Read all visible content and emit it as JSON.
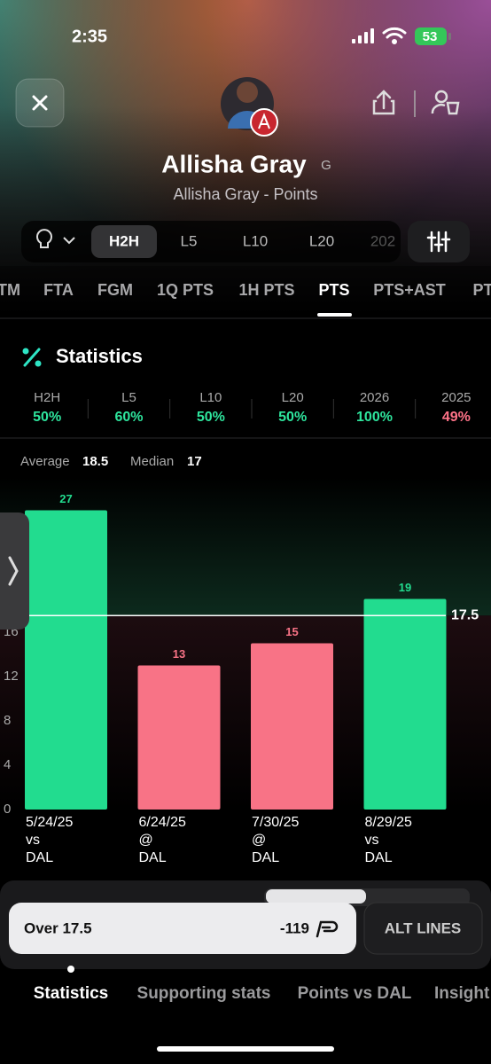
{
  "status_bar": {
    "time": "2:35",
    "battery": "53"
  },
  "header": {
    "player": "Allisha Gray",
    "position": "G",
    "subtitle": "Allisha Gray - Points"
  },
  "range_tabs": [
    "H2H",
    "L5",
    "L10",
    "L20",
    "202"
  ],
  "stat_tabs": [
    "TM",
    "FTA",
    "FGM",
    "1Q PTS",
    "1H PTS",
    "PTS",
    "PTS+AST",
    "PT"
  ],
  "statistics": {
    "title": "Statistics",
    "columns": [
      {
        "label": "H2H",
        "value": "50%",
        "color": "#2ee59d"
      },
      {
        "label": "L5",
        "value": "60%",
        "color": "#2ee59d"
      },
      {
        "label": "L10",
        "value": "50%",
        "color": "#2ee59d"
      },
      {
        "label": "L20",
        "value": "50%",
        "color": "#2ee59d"
      },
      {
        "label": "2026",
        "value": "100%",
        "color": "#2ee59d"
      },
      {
        "label": "2025",
        "value": "49%",
        "color": "#ff7388"
      }
    ]
  },
  "summary": {
    "average_label": "Average",
    "average": 18.5,
    "median_label": "Median",
    "median": 17
  },
  "chart_data": {
    "type": "bar",
    "categories": [
      "5/24/25",
      "6/24/25",
      "7/30/25",
      "8/29/25"
    ],
    "venues": [
      "vs",
      "@",
      "@",
      "vs"
    ],
    "opponents": [
      "DAL",
      "DAL",
      "DAL",
      "DAL"
    ],
    "values": [
      27,
      13,
      15,
      19
    ],
    "colors": [
      "#22dc8f",
      "#f87386",
      "#f87386",
      "#22dc8f"
    ],
    "ylim": [
      0,
      30
    ],
    "yticks": [
      0,
      4,
      8,
      12,
      16
    ],
    "line": 17.5,
    "line_color": "#ffffff"
  },
  "bet": {
    "label": "Over 17.5",
    "odds": -119,
    "alt": "ALT LINES"
  },
  "bottom_tabs": [
    "Statistics",
    "Supporting stats",
    "Points vs DAL",
    "Insight"
  ]
}
